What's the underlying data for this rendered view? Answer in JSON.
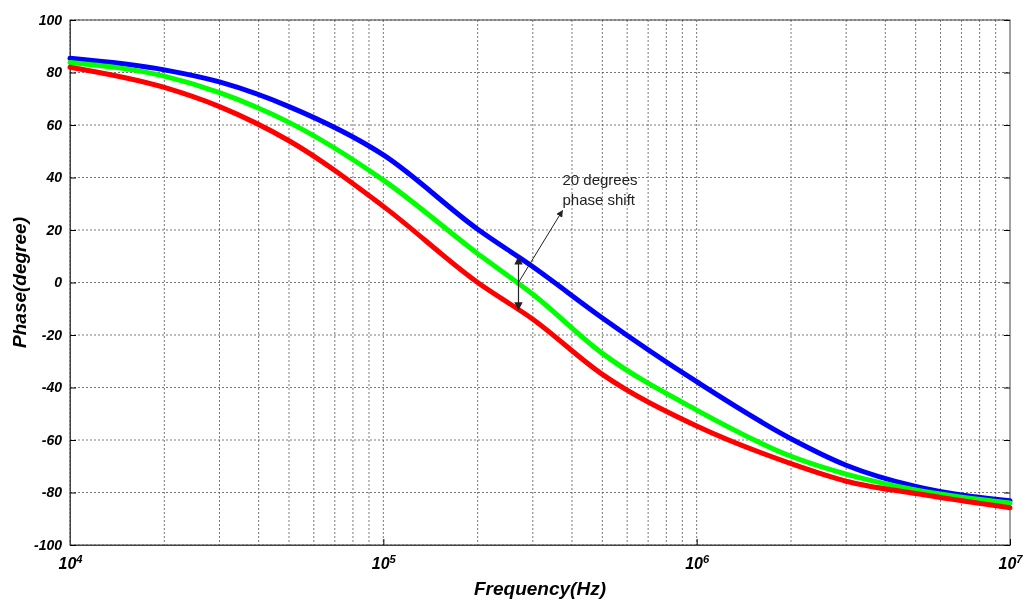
{
  "chart_data": {
    "type": "line",
    "xlabel": "Frequency(Hz)",
    "ylabel": "Phase(degree)",
    "log": "x",
    "grid": true,
    "x": [
      10000,
      20000,
      30000,
      50000,
      100000,
      200000,
      300000,
      500000,
      1000000,
      2000000,
      3000000,
      5000000,
      10000000
    ],
    "xlim": [
      10000,
      10000000
    ],
    "xticks": [
      {
        "value": 10000,
        "label": "10$^{4}$"
      },
      {
        "value": 100000,
        "label": "10$^{5}$"
      },
      {
        "value": 1000000,
        "label": "10$^{6}$"
      },
      {
        "value": 10000000,
        "label": "10$^{7}$"
      }
    ],
    "ylim": [
      -100,
      100
    ],
    "yticks": [
      -100,
      -80,
      -60,
      -40,
      -20,
      0,
      20,
      40,
      60,
      80,
      100
    ],
    "series": [
      {
        "color": "#0000ff",
        "values": [
          85.4,
          81,
          76.4,
          67,
          48.6,
          20.3,
          6,
          -13.5,
          -37.8,
          -59.5,
          -69.6,
          -77.7,
          -83.1
        ]
      },
      {
        "color": "#00ff00",
        "values": [
          83.8,
          78.6,
          72.3,
          61,
          39,
          11,
          -4.5,
          -27,
          -48.6,
          -66.2,
          -73,
          -79,
          -84
        ]
      },
      {
        "color": "#ff0000",
        "values": [
          82,
          74.3,
          67,
          54,
          29,
          0,
          -14,
          -35,
          -54.7,
          -69,
          -75.7,
          -80.4,
          -85.8
        ]
      }
    ],
    "annotations": [
      {
        "text": "20 degrees phase shift",
        "x": 270000,
        "y": 0
      }
    ]
  }
}
